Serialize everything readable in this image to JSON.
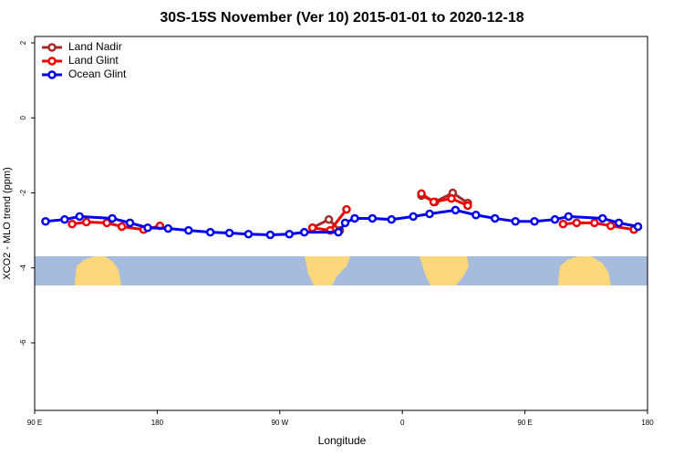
{
  "chart_data": {
    "type": "line",
    "title": "30S-15S November (Ver 10)   2015-01-01 to 2020-12-18",
    "xlabel": "Longitude",
    "ylabel": "XCO2 - MLO trend (ppm)",
    "xlim": [
      90,
      540
    ],
    "ylim": [
      -7.8,
      2.17
    ],
    "xticks": [
      {
        "value": 90,
        "label": "90 E"
      },
      180,
      {
        "value": 270,
        "label": "90 W"
      },
      {
        "value": 360,
        "label": "0"
      },
      {
        "value": 450,
        "label": "90 E"
      },
      {
        "value": 540,
        "label": "180"
      }
    ],
    "yticks": [
      -6,
      -4,
      -2,
      0,
      2
    ],
    "legend": "top-left",
    "series": [
      {
        "name": "Land Nadir",
        "color": "#a52a2a",
        "x": [
          294,
          306,
          314,
          null,
          374,
          384,
          397,
          408
        ],
        "values": [
          -2.93,
          -2.71,
          -3.0,
          null,
          -2.07,
          -2.24,
          -2.0,
          -2.27
        ]
      },
      {
        "name": "Land Glint",
        "color": "#ee0000",
        "x": [
          117.5,
          128,
          143,
          154,
          170,
          182,
          null,
          294,
          307,
          319,
          null,
          374,
          383,
          396,
          408,
          null,
          478,
          488,
          501,
          513,
          530
        ],
        "values": [
          -2.83,
          -2.78,
          -2.8,
          -2.9,
          -2.98,
          -2.88,
          null,
          -2.93,
          -3.0,
          -2.44,
          null,
          -2.02,
          -2.24,
          -2.15,
          -2.34,
          null,
          -2.83,
          -2.8,
          -2.8,
          -2.88,
          -2.98
        ]
      },
      {
        "name": "Ocean Glint",
        "color": "#0000ee",
        "x": [
          98,
          112,
          123,
          147,
          160,
          173,
          188,
          203,
          219,
          233,
          247,
          263,
          277,
          288,
          313,
          318,
          325,
          338,
          352,
          368,
          380,
          399,
          414,
          428,
          443,
          457,
          472,
          482,
          507,
          519,
          533
        ],
        "values": [
          -2.76,
          -2.71,
          -2.63,
          -2.68,
          -2.8,
          -2.93,
          -2.95,
          -3.0,
          -3.05,
          -3.07,
          -3.1,
          -3.12,
          -3.1,
          -3.05,
          -3.05,
          -2.8,
          -2.68,
          -2.68,
          -2.71,
          -2.63,
          -2.56,
          -2.46,
          -2.59,
          -2.68,
          -2.76,
          -2.76,
          -2.71,
          -2.63,
          -2.68,
          -2.8,
          -2.9
        ]
      }
    ]
  }
}
